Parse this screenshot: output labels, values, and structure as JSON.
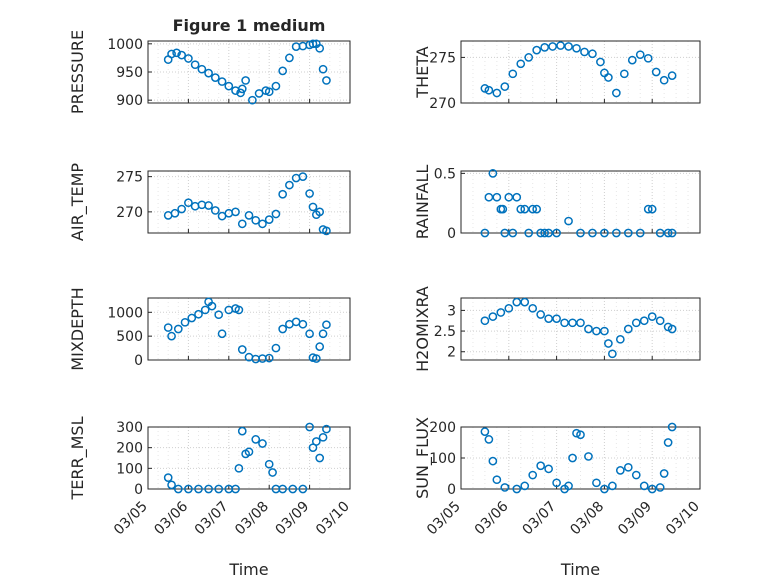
{
  "chart_data": [
    {
      "type": "scatter",
      "title": "Figure 1 medium",
      "ylabel": "PRESSURE",
      "ylim": [
        895,
        1005
      ],
      "yticks": [
        900,
        950,
        1000
      ],
      "x": [
        "03/05 12:00",
        "03/05 14:00",
        "03/05 17:00",
        "03/05 20:00",
        "03/06 00:00",
        "03/06 04:00",
        "03/06 08:00",
        "03/06 12:00",
        "03/06 16:00",
        "03/06 20:00",
        "03/07 00:00",
        "03/07 04:00",
        "03/07 07:00",
        "03/07 08:00",
        "03/07 10:00",
        "03/07 14:00",
        "03/07 18:00",
        "03/07 22:00",
        "03/08 00:00",
        "03/08 04:00",
        "03/08 08:00",
        "03/08 12:00",
        "03/08 16:00",
        "03/08 20:00",
        "03/09 00:00",
        "03/09 02:00",
        "03/09 04:00",
        "03/09 06:00",
        "03/09 08:00",
        "03/09 10:00"
      ],
      "values": [
        972,
        982,
        984,
        980,
        974,
        963,
        955,
        948,
        940,
        933,
        925,
        917,
        913,
        920,
        935,
        900,
        912,
        917,
        915,
        925,
        952,
        975,
        995,
        996,
        998,
        1000,
        1000,
        992,
        955,
        935
      ]
    },
    {
      "type": "scatter",
      "ylabel": "THETA",
      "ylim": [
        270,
        276.8
      ],
      "yticks": [
        270,
        275
      ],
      "x": [
        "03/05 12:00",
        "03/05 14:00",
        "03/05 18:00",
        "03/05 22:00",
        "03/06 02:00",
        "03/06 06:00",
        "03/06 10:00",
        "03/06 14:00",
        "03/06 18:00",
        "03/06 22:00",
        "03/07 02:00",
        "03/07 06:00",
        "03/07 10:00",
        "03/07 14:00",
        "03/07 18:00",
        "03/07 22:00",
        "03/08 00:00",
        "03/08 02:00",
        "03/08 06:00",
        "03/08 10:00",
        "03/08 14:00",
        "03/08 18:00",
        "03/08 22:00",
        "03/09 02:00",
        "03/09 06:00",
        "03/09 10:00"
      ],
      "values": [
        271.6,
        271.4,
        271.1,
        271.8,
        273.2,
        274.3,
        275.0,
        275.8,
        276.1,
        276.2,
        276.3,
        276.2,
        276.0,
        275.6,
        275.4,
        274.5,
        273.3,
        272.8,
        271.1,
        273.2,
        274.7,
        275.3,
        274.9,
        273.4,
        272.5,
        273.0
      ]
    },
    {
      "type": "scatter",
      "ylabel": "AIR_TEMP",
      "ylim": [
        267,
        275.8
      ],
      "yticks": [
        270,
        275
      ],
      "x": [
        "03/05 12:00",
        "03/05 16:00",
        "03/05 20:00",
        "03/06 00:00",
        "03/06 04:00",
        "03/06 08:00",
        "03/06 12:00",
        "03/06 16:00",
        "03/06 20:00",
        "03/07 00:00",
        "03/07 04:00",
        "03/07 08:00",
        "03/07 12:00",
        "03/07 16:00",
        "03/07 20:00",
        "03/08 00:00",
        "03/08 04:00",
        "03/08 08:00",
        "03/08 12:00",
        "03/08 16:00",
        "03/08 20:00",
        "03/09 00:00",
        "03/09 02:00",
        "03/09 04:00",
        "03/09 06:00",
        "03/09 08:00",
        "03/09 10:00"
      ],
      "values": [
        269.5,
        269.8,
        270.4,
        271.3,
        270.8,
        271.0,
        270.9,
        270.2,
        269.4,
        269.8,
        270.0,
        268.3,
        269.5,
        268.8,
        268.3,
        268.9,
        269.7,
        272.5,
        273.8,
        274.8,
        275.0,
        272.6,
        270.7,
        269.6,
        270.0,
        267.5,
        267.3
      ]
    },
    {
      "type": "scatter",
      "ylabel": "RAINFALL",
      "ylim": [
        0,
        0.52
      ],
      "yticks": [
        0,
        0.5
      ],
      "x": [
        "03/05 12:00",
        "03/05 14:00",
        "03/05 16:00",
        "03/05 18:00",
        "03/05 20:00",
        "03/05 21:00",
        "03/05 22:00",
        "03/06 00:00",
        "03/06 02:00",
        "03/06 04:00",
        "03/06 06:00",
        "03/06 08:00",
        "03/06 10:00",
        "03/06 12:00",
        "03/06 14:00",
        "03/06 16:00",
        "03/06 18:00",
        "03/06 20:00",
        "03/07 00:00",
        "03/07 06:00",
        "03/07 12:00",
        "03/07 18:00",
        "03/08 00:00",
        "03/08 06:00",
        "03/08 12:00",
        "03/08 18:00",
        "03/08 22:00",
        "03/09 00:00",
        "03/09 04:00",
        "03/09 08:00",
        "03/09 10:00"
      ],
      "values": [
        0,
        0.3,
        0.5,
        0.3,
        0.2,
        0.2,
        0,
        0.3,
        0,
        0.3,
        0.2,
        0.2,
        0,
        0.2,
        0.2,
        0,
        0,
        0,
        0,
        0.1,
        0,
        0,
        0,
        0,
        0,
        0,
        0.2,
        0.2,
        0,
        0,
        0
      ]
    },
    {
      "type": "scatter",
      "ylabel": "MIXDEPTH",
      "ylim": [
        0,
        1300
      ],
      "yticks": [
        0,
        500,
        1000
      ],
      "x": [
        "03/05 12:00",
        "03/05 14:00",
        "03/05 18:00",
        "03/05 22:00",
        "03/06 02:00",
        "03/06 06:00",
        "03/06 10:00",
        "03/06 12:00",
        "03/06 14:00",
        "03/06 18:00",
        "03/06 20:00",
        "03/07 00:00",
        "03/07 04:00",
        "03/07 06:00",
        "03/07 08:00",
        "03/07 12:00",
        "03/07 16:00",
        "03/07 20:00",
        "03/08 00:00",
        "03/08 04:00",
        "03/08 08:00",
        "03/08 12:00",
        "03/08 16:00",
        "03/08 20:00",
        "03/09 00:00",
        "03/09 02:00",
        "03/09 04:00",
        "03/09 06:00",
        "03/09 08:00",
        "03/09 10:00"
      ],
      "values": [
        680,
        500,
        650,
        790,
        880,
        960,
        1050,
        1220,
        1130,
        950,
        550,
        1050,
        1080,
        1050,
        220,
        60,
        20,
        30,
        40,
        250,
        650,
        750,
        800,
        750,
        550,
        50,
        30,
        280,
        550,
        740
      ]
    },
    {
      "type": "scatter",
      "ylabel": "H2OMIXRA",
      "ylim": [
        1.8,
        3.3
      ],
      "yticks": [
        2,
        2.5,
        3
      ],
      "x": [
        "03/05 12:00",
        "03/05 16:00",
        "03/05 20:00",
        "03/06 00:00",
        "03/06 04:00",
        "03/06 08:00",
        "03/06 12:00",
        "03/06 16:00",
        "03/06 20:00",
        "03/07 00:00",
        "03/07 04:00",
        "03/07 08:00",
        "03/07 12:00",
        "03/07 16:00",
        "03/07 20:00",
        "03/08 00:00",
        "03/08 02:00",
        "03/08 04:00",
        "03/08 08:00",
        "03/08 12:00",
        "03/08 16:00",
        "03/08 20:00",
        "03/09 00:00",
        "03/09 04:00",
        "03/09 08:00",
        "03/09 10:00"
      ],
      "values": [
        2.75,
        2.85,
        2.95,
        3.05,
        3.2,
        3.2,
        3.05,
        2.9,
        2.8,
        2.8,
        2.7,
        2.7,
        2.7,
        2.55,
        2.5,
        2.5,
        2.2,
        1.95,
        2.3,
        2.55,
        2.7,
        2.75,
        2.85,
        2.75,
        2.6,
        2.55
      ]
    },
    {
      "type": "scatter",
      "ylabel": "TERR_MSL",
      "ylim": [
        0,
        300
      ],
      "yticks": [
        0,
        100,
        200,
        300
      ],
      "x": [
        "03/05 12:00",
        "03/05 14:00",
        "03/05 18:00",
        "03/06 00:00",
        "03/06 06:00",
        "03/06 12:00",
        "03/06 18:00",
        "03/07 00:00",
        "03/07 04:00",
        "03/07 06:00",
        "03/07 08:00",
        "03/07 10:00",
        "03/07 12:00",
        "03/07 16:00",
        "03/07 20:00",
        "03/08 00:00",
        "03/08 02:00",
        "03/08 04:00",
        "03/08 08:00",
        "03/08 14:00",
        "03/08 20:00",
        "03/09 00:00",
        "03/09 02:00",
        "03/09 04:00",
        "03/09 06:00",
        "03/09 08:00",
        "03/09 10:00"
      ],
      "values": [
        55,
        20,
        0,
        0,
        0,
        0,
        0,
        0,
        0,
        100,
        280,
        170,
        180,
        240,
        220,
        120,
        80,
        0,
        0,
        0,
        0,
        300,
        200,
        230,
        150,
        250,
        290
      ]
    },
    {
      "type": "scatter",
      "ylabel": "SUN_FLUX",
      "ylim": [
        0,
        200
      ],
      "yticks": [
        0,
        100,
        200
      ],
      "x": [
        "03/05 12:00",
        "03/05 14:00",
        "03/05 16:00",
        "03/05 18:00",
        "03/05 22:00",
        "03/06 04:00",
        "03/06 08:00",
        "03/06 12:00",
        "03/06 16:00",
        "03/06 20:00",
        "03/07 00:00",
        "03/07 04:00",
        "03/07 06:00",
        "03/07 08:00",
        "03/07 10:00",
        "03/07 12:00",
        "03/07 16:00",
        "03/07 20:00",
        "03/08 00:00",
        "03/08 04:00",
        "03/08 08:00",
        "03/08 12:00",
        "03/08 16:00",
        "03/08 20:00",
        "03/09 00:00",
        "03/09 04:00",
        "03/09 06:00",
        "03/09 08:00",
        "03/09 10:00"
      ],
      "values": [
        185,
        160,
        90,
        30,
        5,
        0,
        10,
        45,
        75,
        65,
        20,
        0,
        10,
        100,
        180,
        175,
        105,
        20,
        0,
        10,
        60,
        70,
        45,
        10,
        0,
        5,
        50,
        150,
        200
      ]
    }
  ],
  "xlabel": "Time",
  "xticks": [
    "03/05",
    "03/06",
    "03/07",
    "03/08",
    "03/09",
    "03/10"
  ],
  "series_color": "#0072BD"
}
